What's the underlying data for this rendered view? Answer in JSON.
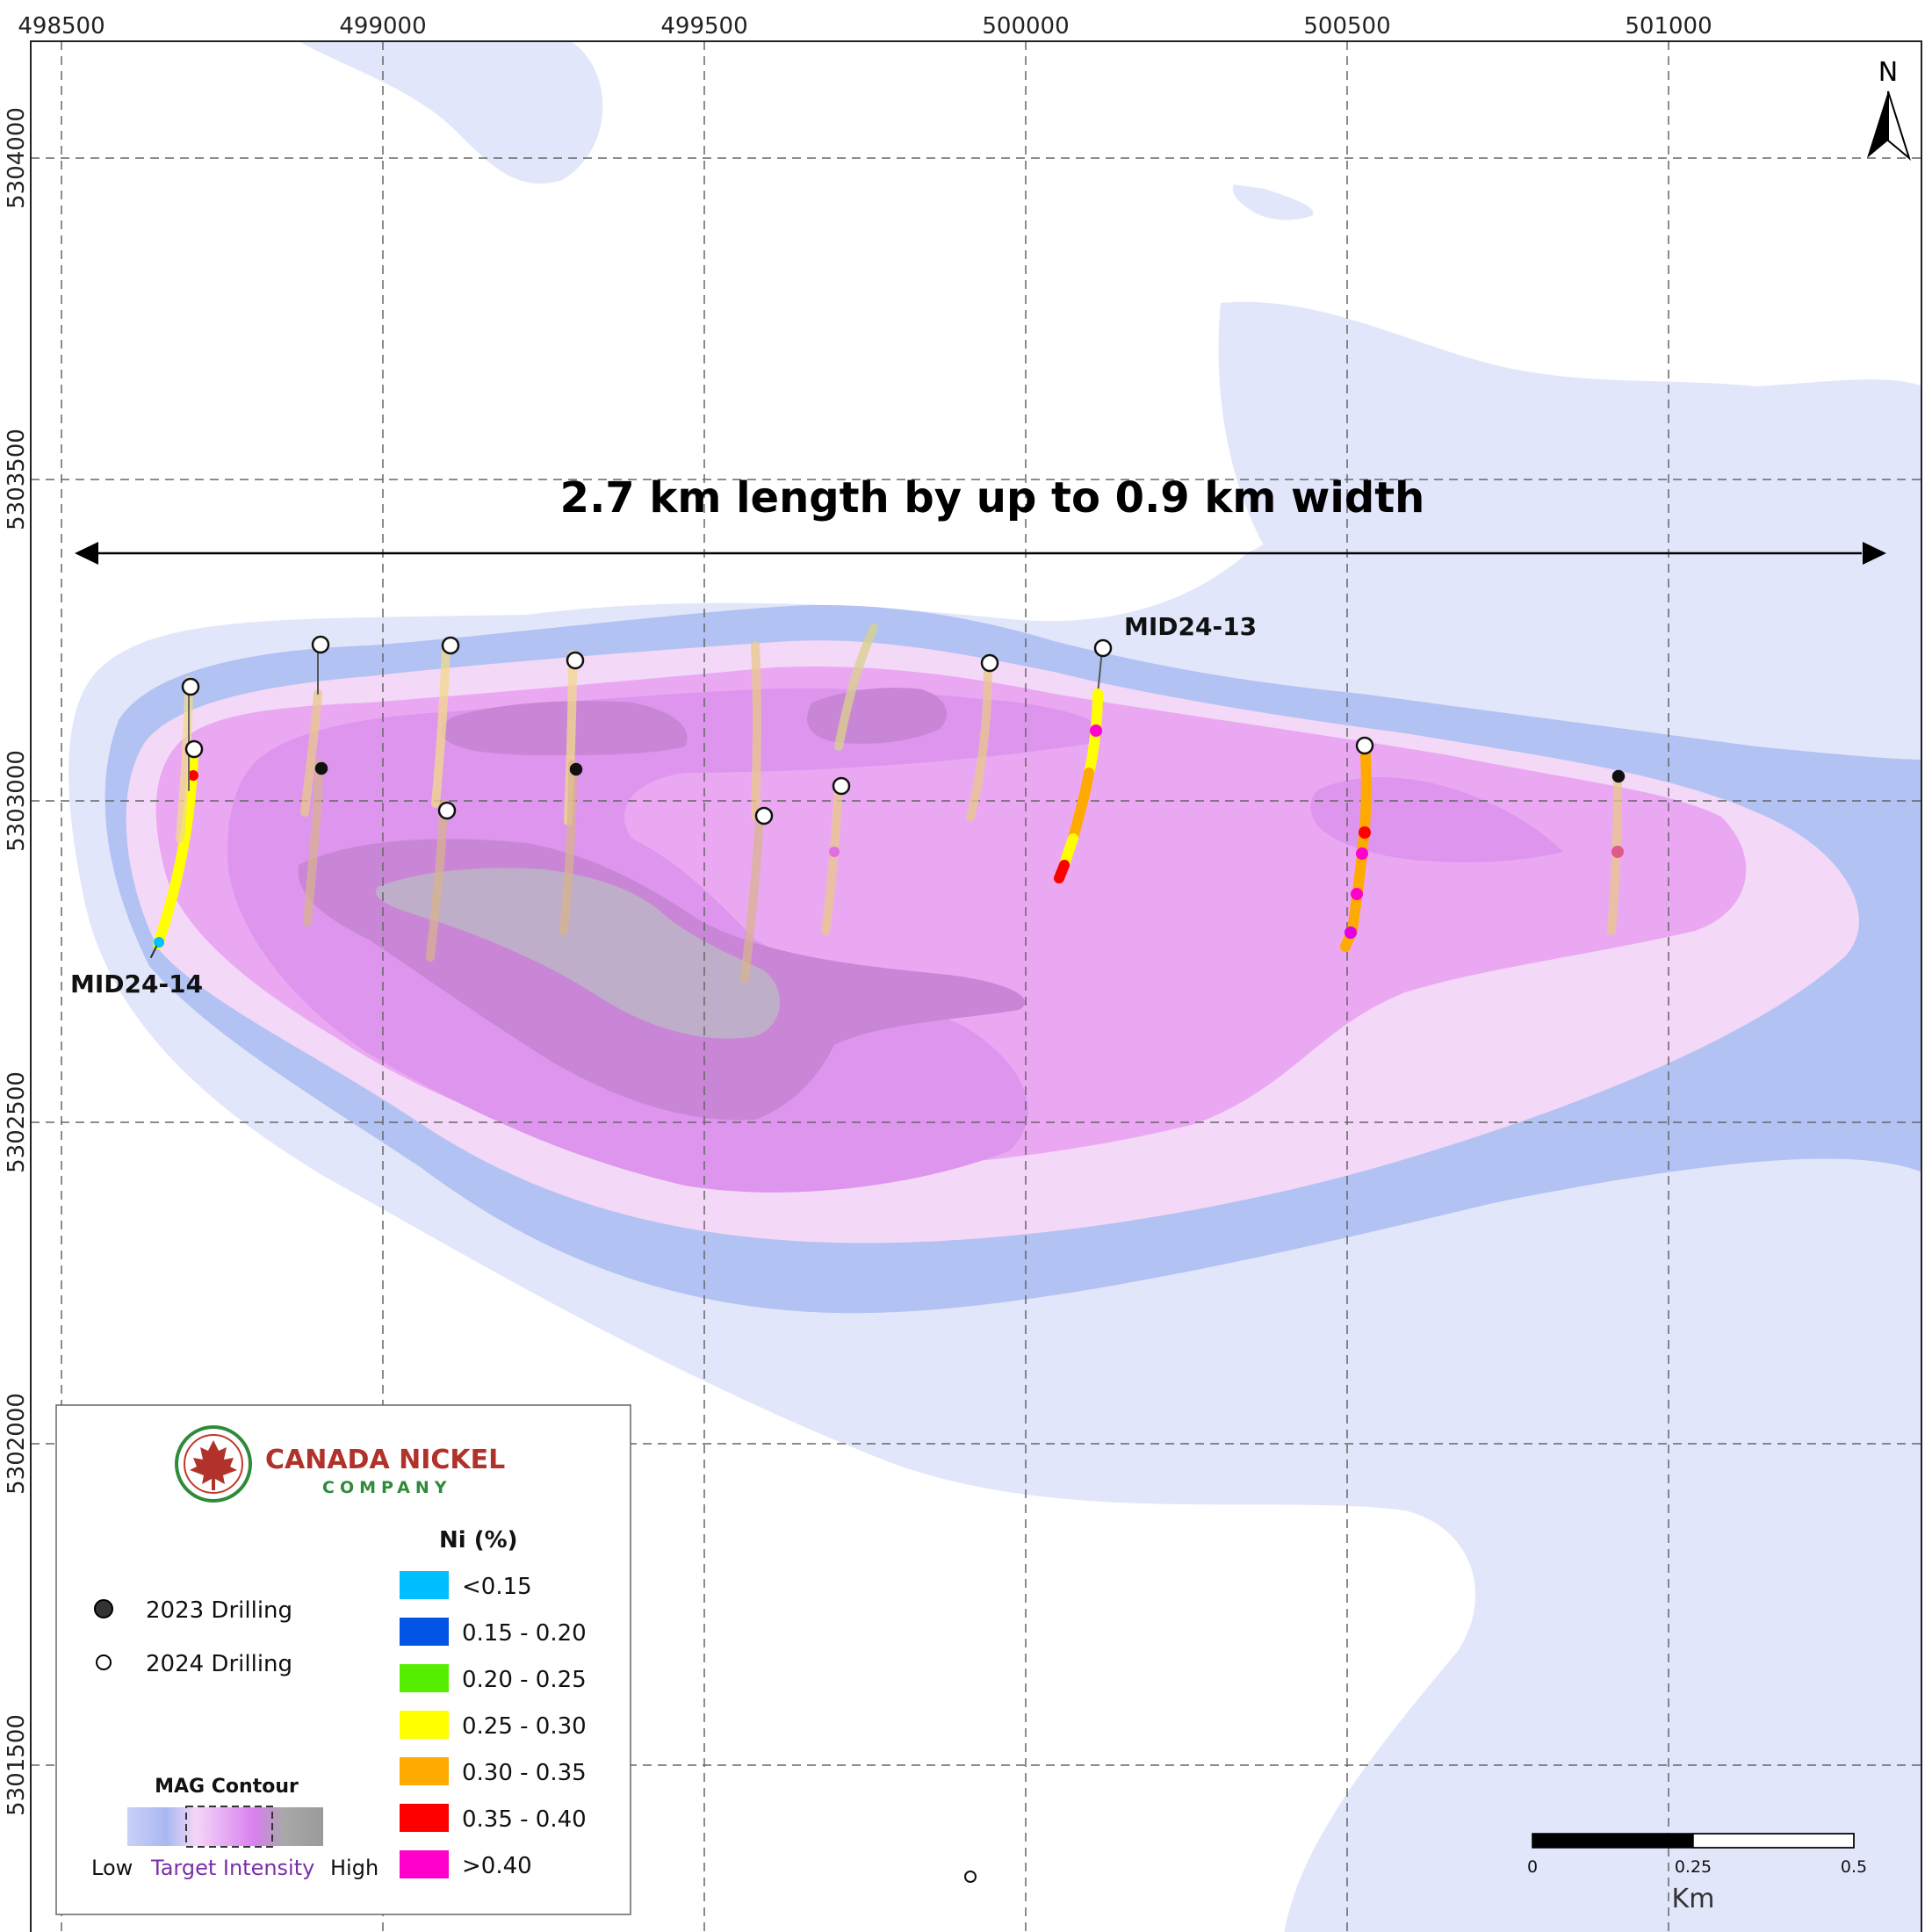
{
  "map": {
    "headline": "2.7 km length by up to 0.9 km width",
    "north_label": "N",
    "x_ticks": [
      "498500",
      "499000",
      "499500",
      "500000",
      "500500",
      "501000"
    ],
    "y_ticks": [
      "5304000",
      "5303500",
      "5303000",
      "5302500",
      "5302000",
      "5301500"
    ],
    "hole_labels": {
      "mid24_13": "MID24-13",
      "mid24_14": "MID24-14"
    }
  },
  "legend": {
    "company_name": "CANADA NICKEL",
    "company_sub": "COMPANY",
    "drilling": [
      {
        "label": "2023 Drilling",
        "symbol": "filled-circle"
      },
      {
        "label": "2024 Drilling",
        "symbol": "open-circle"
      }
    ],
    "ni_title": "Ni (%)",
    "ni_classes": [
      {
        "label": "<0.15",
        "color": "#00bfff"
      },
      {
        "label": "0.15 - 0.20",
        "color": "#0055e6"
      },
      {
        "label": "0.20 - 0.25",
        "color": "#55ee00"
      },
      {
        "label": "0.25 - 0.30",
        "color": "#ffff00"
      },
      {
        "label": "0.30 - 0.35",
        "color": "#ffaa00"
      },
      {
        "label": "0.35 - 0.40",
        "color": "#ff0000"
      },
      {
        "label": ">0.40",
        "color": "#ff00cc"
      }
    ],
    "mag_title": "MAG Contour",
    "mag_low": "Low",
    "mag_target": "Target Intensity",
    "mag_high": "High"
  },
  "scale_bar": {
    "labels": [
      "0",
      "0.25",
      "0.5"
    ],
    "unit": "Km"
  },
  "colors": {
    "mag_1": "#e2e6fa",
    "mag_2": "#b1c2f3",
    "mag_3": "#f4d8f7",
    "mag_4": "#eaa8f3",
    "mag_5": "#dd95ee",
    "mag_6": "#c986d6",
    "mag_7": "#bfaec9",
    "target_purple": "#7a2fa8"
  }
}
